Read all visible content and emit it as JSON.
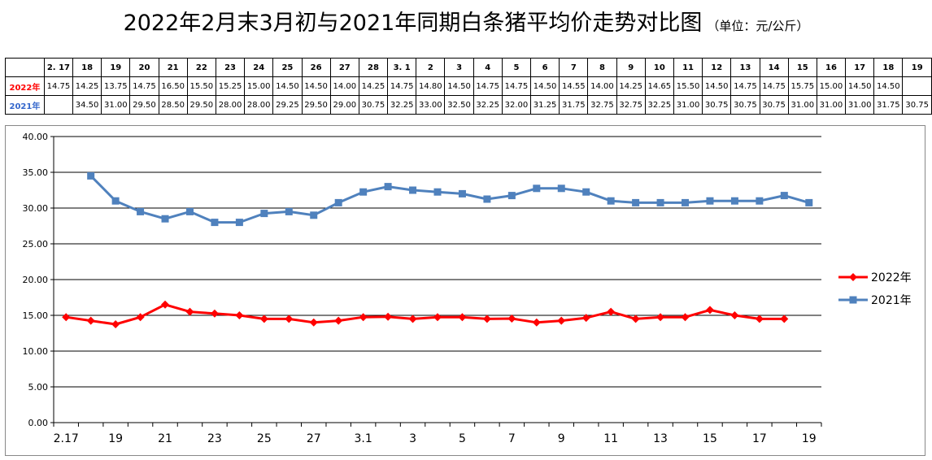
{
  "title": "2022年2月末3月初与2021年同期白条猪平均价走势对比图",
  "unit": "（单位：元/公斤）",
  "table": {
    "header": [
      "2. 17",
      "18",
      "19",
      "20",
      "21",
      "22",
      "23",
      "24",
      "25",
      "26",
      "27",
      "28",
      "3. 1",
      "2",
      "3",
      "4",
      "5",
      "6",
      "7",
      "8",
      "9",
      "10",
      "11",
      "12",
      "13",
      "14",
      "15",
      "16",
      "17",
      "18",
      "19"
    ],
    "rows": [
      {
        "label": "2022年",
        "color": "#ff0000",
        "values": [
          "14.75",
          "14.25",
          "13.75",
          "14.75",
          "16.50",
          "15.50",
          "15.25",
          "15.00",
          "14.50",
          "14.50",
          "14.00",
          "14.25",
          "14.75",
          "14.80",
          "14.50",
          "14.75",
          "14.75",
          "14.50",
          "14.55",
          "14.00",
          "14.25",
          "14.65",
          "15.50",
          "14.50",
          "14.75",
          "14.75",
          "15.75",
          "15.00",
          "14.50",
          "14.50",
          ""
        ]
      },
      {
        "label": "2021年",
        "color": "#3366cc",
        "values": [
          "",
          "34.50",
          "31.00",
          "29.50",
          "28.50",
          "29.50",
          "28.00",
          "28.00",
          "29.25",
          "29.50",
          "29.00",
          "30.75",
          "32.25",
          "33.00",
          "32.50",
          "32.25",
          "32.00",
          "31.25",
          "31.75",
          "32.75",
          "32.75",
          "32.25",
          "31.00",
          "30.75",
          "30.75",
          "30.75",
          "31.00",
          "31.00",
          "31.00",
          "31.75",
          "30.75"
        ]
      }
    ]
  },
  "chart_data": {
    "type": "line",
    "x": [
      "2.17",
      "18",
      "19",
      "20",
      "21",
      "22",
      "23",
      "24",
      "25",
      "26",
      "27",
      "28",
      "3.1",
      "2",
      "3",
      "4",
      "5",
      "6",
      "7",
      "8",
      "9",
      "10",
      "11",
      "12",
      "13",
      "14",
      "15",
      "16",
      "17",
      "18",
      "19"
    ],
    "xtick_labels": [
      "2.17",
      "",
      "19",
      "",
      "21",
      "",
      "23",
      "",
      "25",
      "",
      "27",
      "",
      "3.1",
      "",
      "3",
      "",
      "5",
      "",
      "7",
      "",
      "9",
      "",
      "11",
      "",
      "13",
      "",
      "15",
      "",
      "17",
      "",
      "19"
    ],
    "ylim": [
      0,
      40
    ],
    "yticks": [
      "0.00",
      "5.00",
      "10.00",
      "15.00",
      "20.00",
      "25.00",
      "30.00",
      "35.00",
      "40.00"
    ],
    "grid": true,
    "legend": "right",
    "series": [
      {
        "name": "2022年",
        "color": "#ff0000",
        "marker": "diamond",
        "values": [
          14.75,
          14.25,
          13.75,
          14.75,
          16.5,
          15.5,
          15.25,
          15.0,
          14.5,
          14.5,
          14.0,
          14.25,
          14.75,
          14.8,
          14.5,
          14.75,
          14.75,
          14.5,
          14.55,
          14.0,
          14.25,
          14.65,
          15.5,
          14.5,
          14.75,
          14.75,
          15.75,
          15.0,
          14.5,
          14.5,
          null
        ]
      },
      {
        "name": "2021年",
        "color": "#4f81bd",
        "marker": "square",
        "values": [
          null,
          34.5,
          31.0,
          29.5,
          28.5,
          29.5,
          28.0,
          28.0,
          29.25,
          29.5,
          29.0,
          30.75,
          32.25,
          33.0,
          32.5,
          32.25,
          32.0,
          31.25,
          31.75,
          32.75,
          32.75,
          32.25,
          31.0,
          30.75,
          30.75,
          30.75,
          31.0,
          31.0,
          31.0,
          31.75,
          30.75
        ]
      }
    ]
  }
}
